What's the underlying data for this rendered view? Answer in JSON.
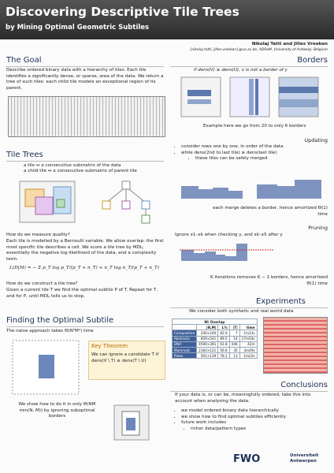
{
  "header": {
    "title": "Discovering Descriptive Tile Trees",
    "subtitle": "by Mining Optimal Geometric Subtiles",
    "authors": "Nikolaj Tatti and Jilles Vreeken",
    "affiliation": "{nikolaj.tatti, jilles.vreeken}@ua.ac.be, ADReM, University of Antwerp, Belgium"
  },
  "goal": {
    "heading": "The Goal",
    "text": "Describe ordered binary data with a hierarchy of tiles. Each tile identifies a significantly dense, or sparse, area of the data. We return a tree of such tiles: each child tile models an exceptional region of its parent."
  },
  "tile_trees": {
    "heading": "Tile Trees",
    "line1": "a tile ↔ a consecutive submatrix of the data",
    "line2": "a child tile ↔ a consecutive submatrix of parent tile",
    "quality_question": "How do we measure quality?",
    "quality_text": "Each tile is modelled by a Bernoulli variable. We allow overlap: the first most specific tile describes a cell. We score a tile tree by MDL; essentially the negative log-likelihood of the data, and a complexity term.",
    "formula": "L(D|M) = − Σ p_T log p_T/(p_T + n_T) + n_T log n_T/(p_T + n_T)",
    "construct_question": "How do we construct a tile tree?",
    "construct_text": "Given a current tile T we find the optimal subtile P of T. Repeat for T, and for P, until MDL tells us to stop."
  },
  "finding": {
    "heading": "Finding the Optimal Subtile",
    "naive": "The naive approach takes Θ(N²M²) time",
    "theorem_title": "Key Theorem",
    "theorem_text": "We can ignore a candidate T if dens(V \\ T) ≥ dens(T \\ U)",
    "bottom": "We show how to do it in only Θ(NM min(N, M)) by ignoring suboptimal borders"
  },
  "borders": {
    "heading": "Borders",
    "statement": "if dens(V) ≥ dens(U), x is not a border of y",
    "example": "Example  here we go from 20 to only 6 borders",
    "updating": "Updating",
    "bullets": [
      "consider rows one by one, in order of the data",
      "while dens(2nd to last tile) ≥ dens(last tile)",
      "these tiles can be safely merged"
    ],
    "merge": "each merge deletes a border, hence amortized Θ(1) time",
    "pruning": "Pruning",
    "ignore": "Ignore x1–xk when checking y, and xk–x5 after y",
    "iterations": "K iterations removes K − 1 borders, hence amortized Θ(1) time"
  },
  "experiments": {
    "heading": "Experiments",
    "intro": "We consider both synthetic and real world data",
    "table": {
      "group": "W/ Overlap",
      "columns": [
        "",
        "|N,M|",
        "L%",
        "|T|",
        "time"
      ],
      "rows": [
        [
          "Composition",
          "240×240",
          "82.6",
          "7",
          "1m23s"
        ],
        [
          "Abstracts",
          "859×541",
          "89.5",
          "14",
          "17m54s"
        ],
        [
          "DNA",
          "4590×391",
          "61.8",
          "446",
          "42m"
        ],
        [
          "Mammals",
          "2183×121",
          "56.6",
          "35",
          "3m49s"
        ],
        [
          "Paleo",
          "501×139",
          "78.1",
          "13",
          "1m22s"
        ]
      ]
    }
  },
  "conclusions": {
    "heading": "Conclusions",
    "text": "If your data is, or can be, meaningfully ordered, take this into account when analysing the data.",
    "bullets": [
      "we model ordered binary data hierarchically",
      "we show how to find optimal subtiles efficiently",
      "future work includes"
    ],
    "sub": "richer data/pattern types"
  },
  "footer": {
    "fwo": "FWO",
    "ua": "Universiteit Antwerpen"
  }
}
